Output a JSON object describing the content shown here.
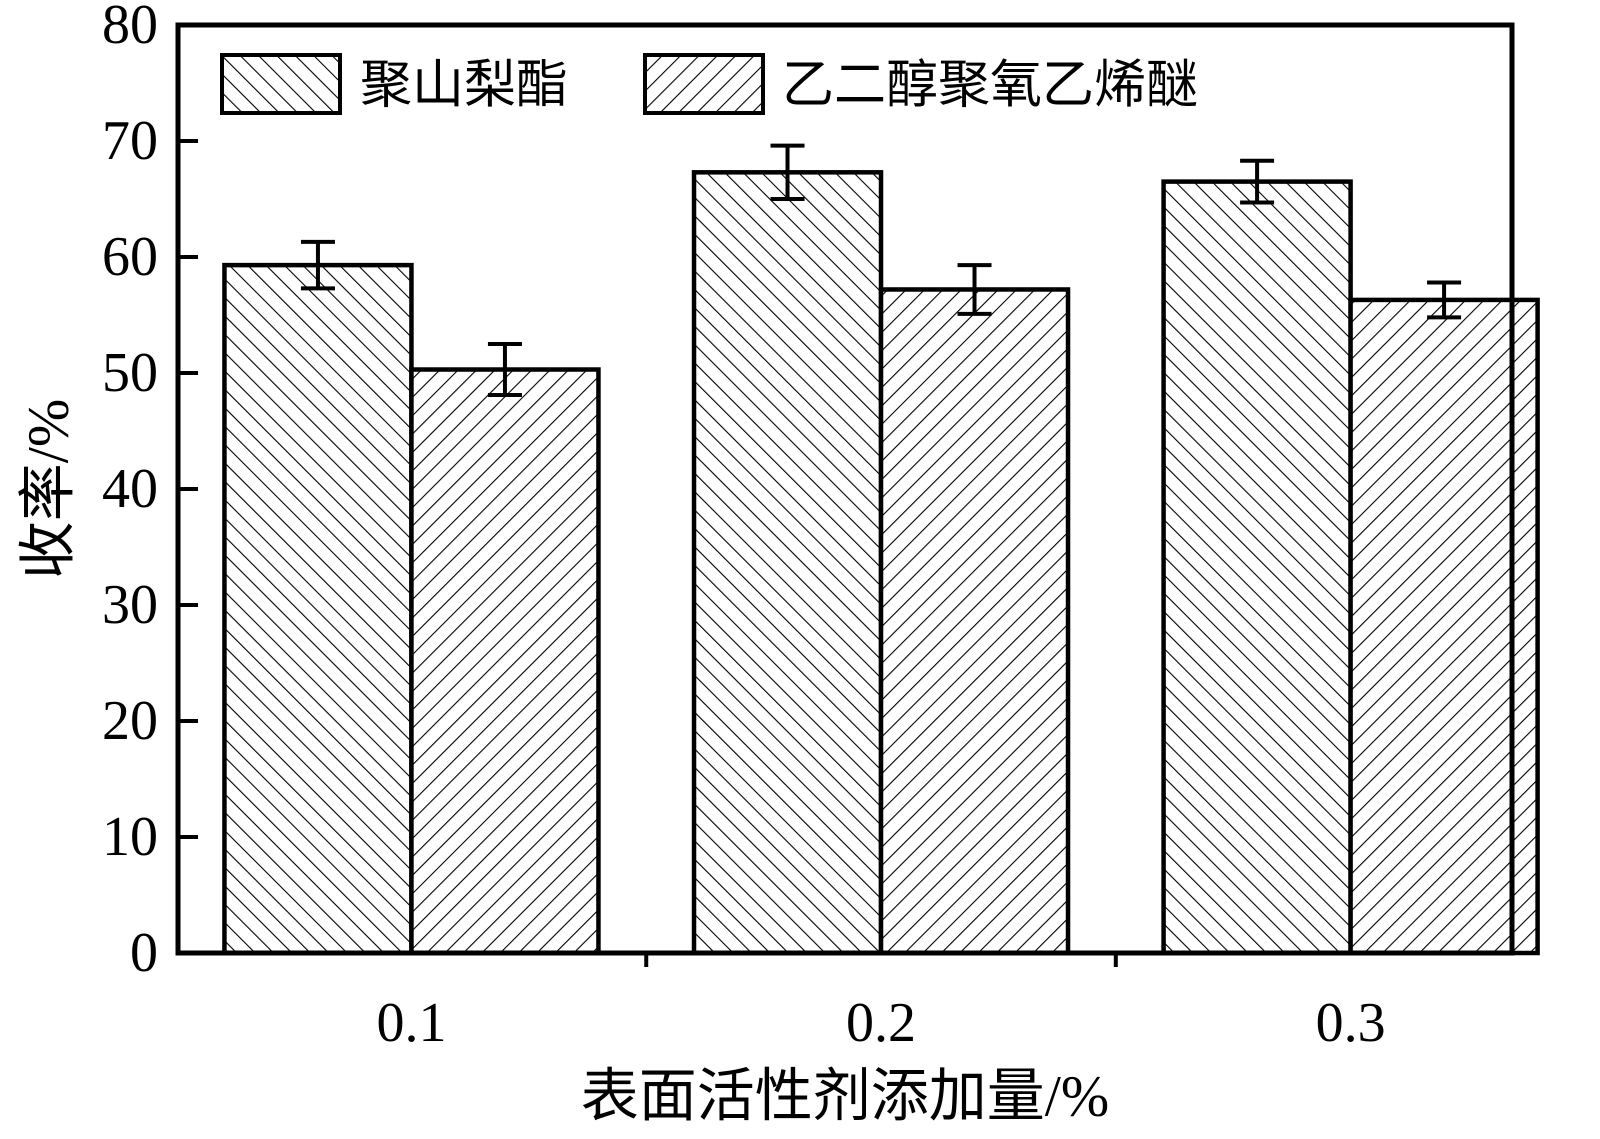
{
  "chart_data": {
    "type": "bar",
    "title": "",
    "xlabel": "表面活性剂添加量/%",
    "ylabel": "收率/%",
    "categories": [
      "0.1",
      "0.2",
      "0.3"
    ],
    "series": [
      {
        "name": "聚山梨酯",
        "hatch": "forward-slash",
        "values": [
          59.3,
          67.3,
          66.5
        ],
        "errors": [
          2.0,
          2.3,
          1.8
        ]
      },
      {
        "name": "乙二醇聚氧乙烯醚",
        "hatch": "back-slash",
        "values": [
          50.3,
          57.2,
          56.3
        ],
        "errors": [
          2.2,
          2.1,
          1.5
        ]
      }
    ],
    "ylim": [
      0,
      80
    ],
    "yticks": [
      0,
      10,
      20,
      30,
      40,
      50,
      60,
      70,
      80
    ],
    "grid": false,
    "legend_position": "top-left-inside",
    "colors": {
      "foreground": "#000000",
      "background": "#ffffff"
    }
  }
}
